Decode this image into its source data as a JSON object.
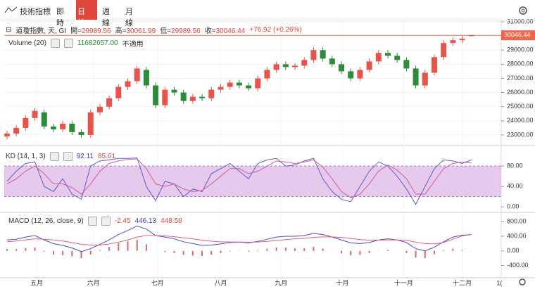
{
  "toolbar": {
    "indicators": "技術指標",
    "tabs": [
      "即時",
      "日線",
      "週線",
      "月線"
    ],
    "active_tab": 1
  },
  "chart_data": [
    {
      "type": "candlestick",
      "title": "道瓊指數, 天, GI",
      "ohlc_labels": [
        "開=",
        "高=",
        "低=",
        "收="
      ],
      "change_label": "+76.92 (+0.26%)",
      "volume_label": "Volume (20)",
      "volume_value_label": "11682657.00",
      "volume_note": "不適用",
      "up_color": "#e8534a",
      "down_color": "#2e8b3a",
      "open": [
        22900,
        23100,
        23500,
        24200,
        24600,
        23600,
        23400,
        23800,
        23200,
        23000,
        24600,
        25000,
        25600,
        26400,
        26800,
        27600,
        26500,
        25100,
        26200,
        26000,
        25400,
        25700,
        25600,
        26200,
        26400,
        26700,
        26500,
        26300,
        27000,
        27600,
        28000,
        27800,
        27900,
        28300,
        29000,
        28400,
        28000,
        27500,
        27000,
        27600,
        28200,
        28800,
        28600,
        28300,
        27700,
        26500,
        27400,
        28500,
        29500,
        29700,
        29989.56
      ],
      "high": [
        23300,
        23700,
        24400,
        24900,
        24800,
        23800,
        24000,
        24000,
        23400,
        24800,
        25200,
        25800,
        26600,
        27000,
        27900,
        27800,
        26700,
        26400,
        26400,
        26200,
        25900,
        25900,
        26400,
        26600,
        26900,
        26900,
        26700,
        27200,
        27800,
        28200,
        28200,
        28100,
        28500,
        29200,
        29200,
        28600,
        28200,
        27700,
        27800,
        28400,
        29000,
        29000,
        28800,
        28500,
        27900,
        27600,
        28700,
        29700,
        29900,
        30000,
        30061.99
      ],
      "low": [
        22700,
        22900,
        23300,
        24000,
        23400,
        23200,
        23200,
        23000,
        22800,
        22800,
        24400,
        24800,
        25400,
        26200,
        26600,
        26300,
        24900,
        24900,
        25800,
        25200,
        25200,
        25400,
        25400,
        26000,
        26200,
        26300,
        26100,
        26100,
        26800,
        27400,
        27600,
        27600,
        27700,
        28100,
        28200,
        27800,
        27300,
        26800,
        26800,
        27400,
        28000,
        28400,
        28100,
        27500,
        26300,
        26300,
        27200,
        28300,
        29300,
        29500,
        29989.56
      ],
      "close": [
        23100,
        23500,
        24200,
        24700,
        23600,
        23400,
        23800,
        23200,
        23000,
        24600,
        25000,
        25600,
        26400,
        26800,
        27700,
        26500,
        25100,
        26200,
        26000,
        25400,
        25700,
        25600,
        26200,
        26400,
        26700,
        26500,
        26300,
        27000,
        27600,
        28000,
        27800,
        27900,
        28300,
        29000,
        28400,
        28000,
        27500,
        27000,
        27600,
        28200,
        28800,
        28600,
        28300,
        27700,
        26500,
        27400,
        28500,
        29500,
        29700,
        29800,
        30046.44
      ],
      "ylim": [
        22350,
        31150
      ],
      "yticks": [
        {
          "value": 23000,
          "label": "23000.00"
        },
        {
          "value": 24000,
          "label": "24000.00"
        },
        {
          "value": 25000,
          "label": "25000.00"
        },
        {
          "value": 26000,
          "label": "26000.00"
        },
        {
          "value": 27000,
          "label": "27000.00"
        },
        {
          "value": 28000,
          "label": "28000.00"
        },
        {
          "value": 29000,
          "label": "29000.00"
        },
        {
          "value": 30000,
          "label": "30000.00"
        },
        {
          "value": 31000,
          "label": "31000.00"
        }
      ],
      "price_line_color": "#f0644b",
      "grid": true
    },
    {
      "type": "line",
      "title": "KD (14, 1, 3)",
      "band": [
        20,
        80
      ],
      "band_color": "#dcb8e6",
      "series": [
        {
          "color": "#5b5bd6",
          "values": [
            50,
            70,
            85,
            88,
            40,
            30,
            55,
            25,
            15,
            80,
            90,
            92,
            95,
            95,
            96,
            40,
            12,
            50,
            45,
            20,
            35,
            30,
            65,
            75,
            85,
            70,
            55,
            85,
            92,
            95,
            80,
            82,
            90,
            95,
            55,
            30,
            15,
            10,
            40,
            70,
            88,
            80,
            60,
            35,
            5,
            40,
            75,
            92,
            90,
            85,
            92.11
          ]
        },
        {
          "color": "#d45b9e",
          "values": [
            45,
            55,
            70,
            80,
            65,
            45,
            45,
            38,
            25,
            45,
            70,
            85,
            90,
            93,
            94,
            75,
            45,
            40,
            45,
            35,
            30,
            32,
            45,
            60,
            75,
            75,
            65,
            70,
            80,
            90,
            88,
            85,
            88,
            92,
            78,
            55,
            30,
            18,
            25,
            45,
            70,
            82,
            72,
            55,
            25,
            25,
            50,
            75,
            85,
            88,
            85.61
          ]
        }
      ],
      "ylim": [
        -8,
        116
      ],
      "yticks": [
        {
          "value": 0,
          "label": "0.00"
        },
        {
          "value": 40,
          "label": "40.00"
        },
        {
          "value": 80,
          "label": "80.00"
        }
      ]
    },
    {
      "type": "macd",
      "title": "MACD (12, 26, close, 9)",
      "histogram": {
        "color": "#e06666",
        "values": [
          50,
          50,
          80,
          90,
          -20,
          -100,
          -120,
          -150,
          -200,
          -100,
          20,
          110,
          210,
          260,
          300,
          180,
          0,
          -30,
          -60,
          -110,
          -130,
          -140,
          -105,
          -60,
          -15,
          -5,
          -20,
          15,
          60,
          95,
          90,
          70,
          75,
          110,
          65,
          -5,
          -70,
          -120,
          -110,
          -65,
          5,
          30,
          0,
          -60,
          -180,
          -200,
          -90,
          20,
          60,
          20,
          -2.45
        ]
      },
      "series": [
        {
          "color": "#4a4ad0",
          "values": [
            300,
            320,
            380,
            420,
            300,
            200,
            150,
            80,
            -20,
            60,
            180,
            300,
            450,
            560,
            680,
            600,
            420,
            380,
            330,
            250,
            200,
            150,
            160,
            190,
            230,
            240,
            220,
            260,
            320,
            380,
            400,
            400,
            420,
            480,
            450,
            380,
            300,
            220,
            200,
            230,
            300,
            330,
            300,
            230,
            60,
            0,
            100,
            250,
            380,
            430,
            446.13
          ]
        },
        {
          "color": "#e0607a",
          "values": [
            250,
            270,
            300,
            330,
            320,
            300,
            270,
            230,
            180,
            160,
            160,
            190,
            240,
            300,
            380,
            420,
            420,
            410,
            390,
            360,
            330,
            290,
            265,
            250,
            245,
            245,
            240,
            245,
            260,
            285,
            310,
            330,
            345,
            370,
            385,
            385,
            370,
            340,
            310,
            295,
            295,
            300,
            300,
            290,
            240,
            200,
            190,
            230,
            320,
            410,
            448.58
          ]
        }
      ],
      "ylim": [
        -700,
        1000
      ],
      "yticks": [
        {
          "value": 800,
          "label": "800.00"
        },
        {
          "value": 400,
          "label": "400.00"
        },
        {
          "value": 0,
          "label": "0.00"
        },
        {
          "value": -400,
          "label": "-400.00"
        }
      ],
      "xlim": [
        -0.3,
        53.2
      ],
      "xticks": [
        {
          "value": 3.2,
          "label": "五月"
        },
        {
          "value": 9.3,
          "label": "六月"
        },
        {
          "value": 16.2,
          "label": "七月"
        },
        {
          "value": 23,
          "label": "八月"
        },
        {
          "value": 29.5,
          "label": "九月"
        },
        {
          "value": 36.1,
          "label": "十月"
        },
        {
          "value": 42.7,
          "label": "十一月"
        },
        {
          "value": 49,
          "label": "十二月"
        },
        {
          "value": 53,
          "label": "1("
        }
      ]
    }
  ]
}
